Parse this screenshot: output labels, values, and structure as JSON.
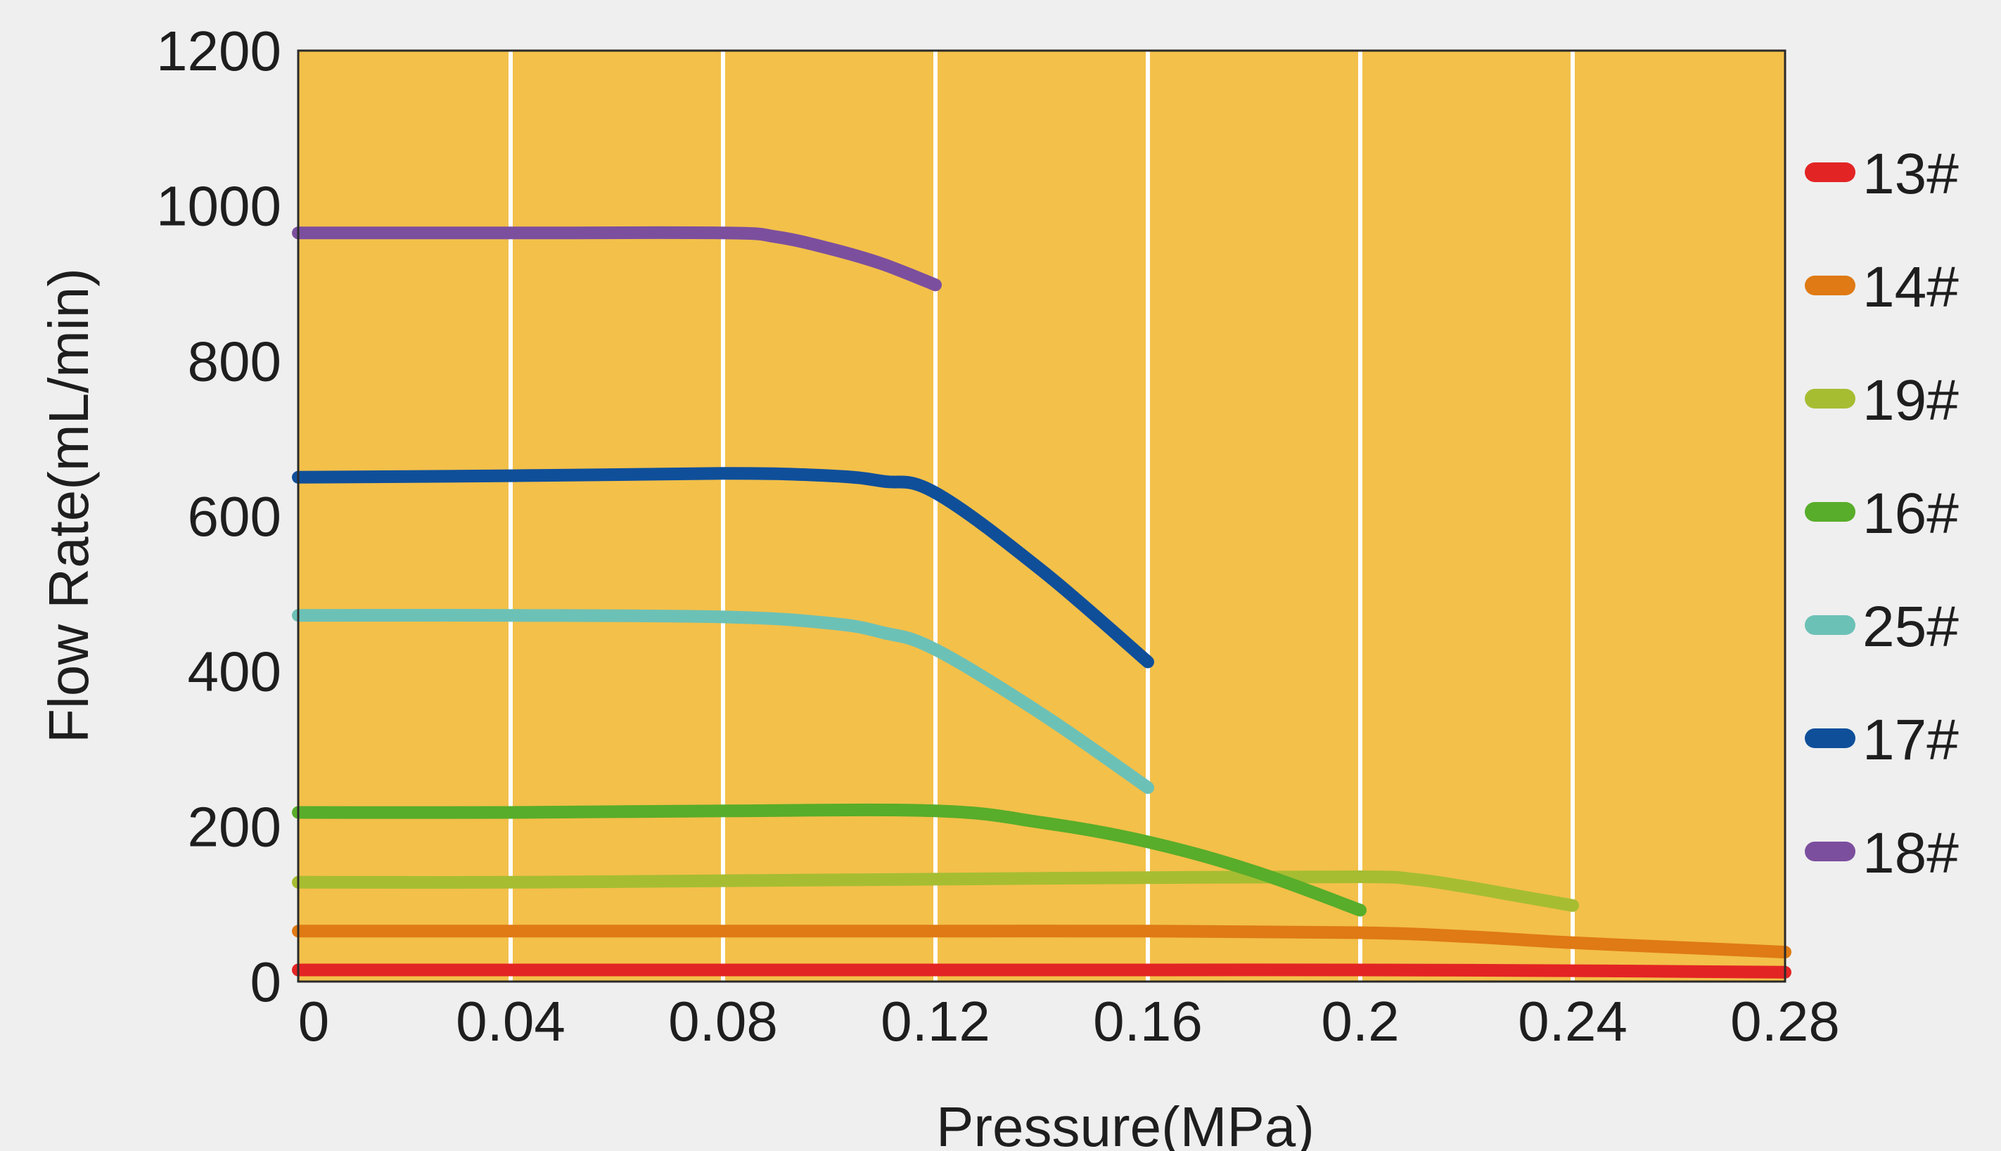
{
  "chart_data": {
    "type": "line",
    "title": "",
    "xlabel": "Pressure(MPa)",
    "ylabel": "Flow Rate(mL/min)",
    "xlim": [
      0,
      0.28
    ],
    "ylim": [
      0,
      1200
    ],
    "x_ticks": [
      "0",
      "0.04",
      "0.08",
      "0.12",
      "0.16",
      "0.2",
      "0.24",
      "0.28"
    ],
    "y_ticks": [
      "0",
      "200",
      "400",
      "600",
      "800",
      "1000",
      "1200"
    ],
    "x_tick_values": [
      0,
      0.04,
      0.08,
      0.12,
      0.16,
      0.2,
      0.24,
      0.28
    ],
    "y_tick_values": [
      0,
      200,
      400,
      600,
      800,
      1000,
      1200
    ],
    "grid": "vertical",
    "legend_position": "right",
    "plot_background": "#f3c04a",
    "page_background": "#efefef",
    "series": [
      {
        "name": "13#",
        "color": "#e32424",
        "points": [
          [
            0,
            15
          ],
          [
            0.04,
            15
          ],
          [
            0.08,
            15
          ],
          [
            0.12,
            15
          ],
          [
            0.16,
            15
          ],
          [
            0.2,
            15
          ],
          [
            0.24,
            14
          ],
          [
            0.28,
            12
          ]
        ]
      },
      {
        "name": "14#",
        "color": "#df7a14",
        "points": [
          [
            0,
            65
          ],
          [
            0.04,
            65
          ],
          [
            0.08,
            65
          ],
          [
            0.12,
            65
          ],
          [
            0.16,
            65
          ],
          [
            0.2,
            63
          ],
          [
            0.22,
            58
          ],
          [
            0.24,
            50
          ],
          [
            0.26,
            44
          ],
          [
            0.28,
            38
          ]
        ]
      },
      {
        "name": "19#",
        "color": "#a6bd32",
        "points": [
          [
            0,
            128
          ],
          [
            0.04,
            128
          ],
          [
            0.08,
            130
          ],
          [
            0.12,
            132
          ],
          [
            0.16,
            134
          ],
          [
            0.2,
            135
          ],
          [
            0.21,
            132
          ],
          [
            0.22,
            122
          ],
          [
            0.23,
            110
          ],
          [
            0.24,
            98
          ]
        ]
      },
      {
        "name": "16#",
        "color": "#58ad2a",
        "points": [
          [
            0,
            218
          ],
          [
            0.04,
            218
          ],
          [
            0.08,
            220
          ],
          [
            0.12,
            220
          ],
          [
            0.14,
            205
          ],
          [
            0.16,
            180
          ],
          [
            0.18,
            142
          ],
          [
            0.2,
            92
          ]
        ]
      },
      {
        "name": "25#",
        "color": "#6cc1b6",
        "points": [
          [
            0,
            472
          ],
          [
            0.04,
            472
          ],
          [
            0.08,
            470
          ],
          [
            0.1,
            462
          ],
          [
            0.11,
            450
          ],
          [
            0.12,
            428
          ],
          [
            0.14,
            345
          ],
          [
            0.16,
            250
          ]
        ]
      },
      {
        "name": "17#",
        "color": "#0f4f9a",
        "points": [
          [
            0,
            650
          ],
          [
            0.04,
            652
          ],
          [
            0.08,
            655
          ],
          [
            0.1,
            652
          ],
          [
            0.11,
            645
          ],
          [
            0.12,
            630
          ],
          [
            0.14,
            530
          ],
          [
            0.16,
            412
          ]
        ]
      },
      {
        "name": "18#",
        "color": "#7c4f9e",
        "points": [
          [
            0,
            965
          ],
          [
            0.04,
            965
          ],
          [
            0.08,
            965
          ],
          [
            0.09,
            960
          ],
          [
            0.1,
            945
          ],
          [
            0.11,
            925
          ],
          [
            0.12,
            898
          ]
        ]
      }
    ]
  }
}
